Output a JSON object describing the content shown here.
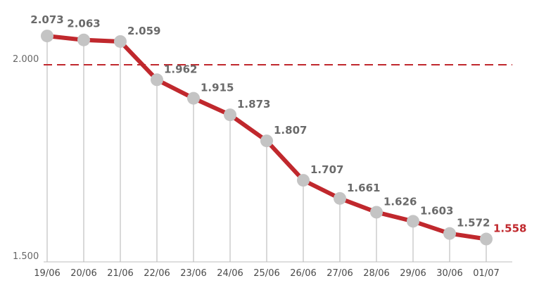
{
  "chart_data": {
    "type": "line",
    "title": "",
    "xlabel": "",
    "ylabel": "",
    "x": [
      "19/06",
      "20/06",
      "21/06",
      "22/06",
      "23/06",
      "24/06",
      "25/06",
      "26/06",
      "27/06",
      "28/06",
      "29/06",
      "30/06",
      "01/07"
    ],
    "values": [
      2073,
      2063,
      2059,
      1962,
      1915,
      1873,
      1807,
      1707,
      1661,
      1626,
      1603,
      1572,
      1558
    ],
    "value_labels": [
      "2.073",
      "2.063",
      "2.059",
      "1.962",
      "1.915",
      "1.873",
      "1.807",
      "1.707",
      "1.661",
      "1.626",
      "1.603",
      "1.572",
      "1.558"
    ],
    "y_ticks": [
      {
        "value": 2000,
        "label": "2.000"
      },
      {
        "value": 1500,
        "label": "1.500"
      }
    ],
    "reference_line": {
      "value": 2000,
      "style": "dashed"
    },
    "ylim": [
      1500,
      2073
    ],
    "grid": false,
    "colors": {
      "line": "#c0282d",
      "marker": "#c4c4c4",
      "reference_line": "#c0282d",
      "drop_line": "#d9d9d9",
      "highlight_label": "#c0282d"
    }
  }
}
